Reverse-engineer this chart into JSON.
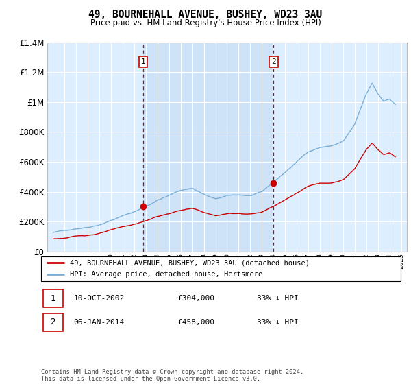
{
  "title": "49, BOURNEHALL AVENUE, BUSHEY, WD23 3AU",
  "subtitle": "Price paid vs. HM Land Registry's House Price Index (HPI)",
  "legend_line1": "49, BOURNEHALL AVENUE, BUSHEY, WD23 3AU (detached house)",
  "legend_line2": "HPI: Average price, detached house, Hertsmere",
  "footnote": "Contains HM Land Registry data © Crown copyright and database right 2024.\nThis data is licensed under the Open Government Licence v3.0.",
  "table": [
    {
      "num": "1",
      "date": "10-OCT-2002",
      "price": "£304,000",
      "hpi": "33% ↓ HPI"
    },
    {
      "num": "2",
      "date": "06-JAN-2014",
      "price": "£458,000",
      "hpi": "33% ↓ HPI"
    }
  ],
  "marker1_x": 2002.78,
  "marker1_y": 304000,
  "marker2_x": 2014.01,
  "marker2_y": 458000,
  "vline1_x": 2002.78,
  "vline2_x": 2014.01,
  "ylim": [
    0,
    1400000
  ],
  "yticks": [
    0,
    200000,
    400000,
    600000,
    800000,
    1000000,
    1200000,
    1400000
  ],
  "xlim_start": 1994.5,
  "xlim_end": 2025.5,
  "red_color": "#cc0000",
  "blue_color": "#7aaed6",
  "shade_color": "#ddeeff",
  "bg_color": "#ddeeff",
  "grid_color": "#ffffff"
}
